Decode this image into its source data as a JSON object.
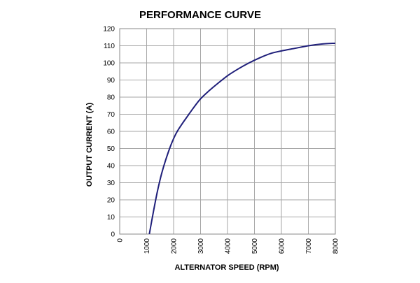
{
  "chart_data": {
    "type": "line",
    "title": "PERFORMANCE CURVE",
    "xlabel": "ALTERNATOR SPEED (RPM)",
    "ylabel": "OUTPUT CURRENT (A)",
    "xlim": [
      0,
      8000
    ],
    "ylim": [
      0,
      120
    ],
    "x_ticks": [
      0,
      1000,
      2000,
      3000,
      4000,
      5000,
      6000,
      7000,
      8000
    ],
    "y_ticks": [
      0,
      10,
      20,
      30,
      40,
      50,
      60,
      70,
      80,
      90,
      100,
      110,
      120
    ],
    "x_tick_labels": [
      "0",
      "1000",
      "2000",
      "3000",
      "4000",
      "5000",
      "6000",
      "7000",
      "8000"
    ],
    "y_tick_labels": [
      "0",
      "10",
      "20",
      "30",
      "40",
      "50",
      "60",
      "70",
      "80",
      "90",
      "100",
      "110",
      "120"
    ],
    "grid": true,
    "line_color": "#1f1f7a",
    "series": [
      {
        "x": [
          1100,
          1250,
          1400,
          1550,
          1700,
          1900,
          2100,
          2300,
          2500,
          2750,
          3000,
          3300,
          3600,
          4000,
          4400,
          4800,
          5200,
          5600,
          6000,
          6500,
          7000,
          7500,
          8000
        ],
        "y": [
          0,
          13,
          25,
          35,
          43,
          52,
          59,
          64,
          68.5,
          74,
          79,
          83.5,
          87.5,
          92.5,
          96.5,
          100,
          103,
          105.5,
          107,
          108.5,
          110,
          111,
          111.5
        ]
      }
    ]
  }
}
